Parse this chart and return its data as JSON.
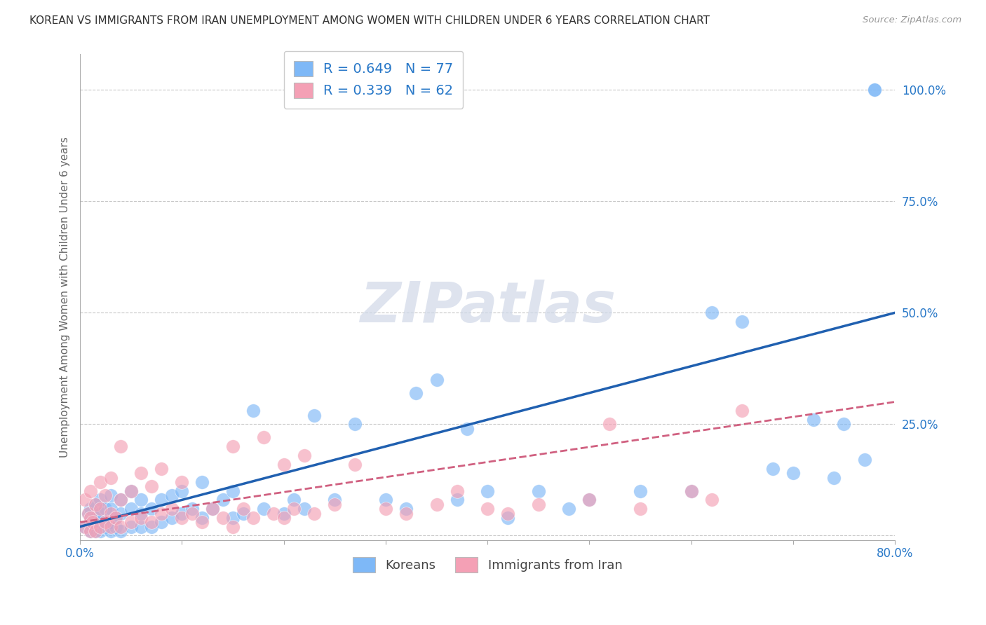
{
  "title": "KOREAN VS IMMIGRANTS FROM IRAN UNEMPLOYMENT AMONG WOMEN WITH CHILDREN UNDER 6 YEARS CORRELATION CHART",
  "source": "Source: ZipAtlas.com",
  "ylabel": "Unemployment Among Women with Children Under 6 years",
  "xlim": [
    0.0,
    0.8
  ],
  "ylim": [
    -0.01,
    1.08
  ],
  "xticks": [
    0.0,
    0.1,
    0.2,
    0.3,
    0.4,
    0.5,
    0.6,
    0.7,
    0.8
  ],
  "xticklabels": [
    "0.0%",
    "",
    "",
    "",
    "",
    "",
    "",
    "",
    "80.0%"
  ],
  "ytick_positions": [
    0.0,
    0.25,
    0.5,
    0.75,
    1.0
  ],
  "ytick_labels": [
    "",
    "25.0%",
    "50.0%",
    "75.0%",
    "100.0%"
  ],
  "korean_color": "#7eb8f7",
  "iran_color": "#f4a0b5",
  "korean_line_color": "#2060b0",
  "iran_line_color": "#d06080",
  "korean_R": 0.649,
  "korean_N": 77,
  "iran_R": 0.339,
  "iran_N": 62,
  "watermark": "ZIPatlas",
  "background_color": "#ffffff",
  "grid_color": "#c8c8c8",
  "title_color": "#333333",
  "axis_label_color": "#666666",
  "tick_color": "#2878c8",
  "korean_x": [
    0.005,
    0.008,
    0.01,
    0.01,
    0.01,
    0.012,
    0.015,
    0.015,
    0.015,
    0.02,
    0.02,
    0.02,
    0.02,
    0.025,
    0.025,
    0.03,
    0.03,
    0.03,
    0.03,
    0.035,
    0.035,
    0.04,
    0.04,
    0.04,
    0.05,
    0.05,
    0.05,
    0.06,
    0.06,
    0.06,
    0.07,
    0.07,
    0.08,
    0.08,
    0.09,
    0.09,
    0.1,
    0.1,
    0.11,
    0.12,
    0.12,
    0.13,
    0.14,
    0.15,
    0.15,
    0.16,
    0.17,
    0.18,
    0.2,
    0.21,
    0.22,
    0.23,
    0.25,
    0.27,
    0.3,
    0.32,
    0.33,
    0.35,
    0.37,
    0.38,
    0.4,
    0.42,
    0.45,
    0.48,
    0.5,
    0.55,
    0.6,
    0.62,
    0.65,
    0.68,
    0.7,
    0.72,
    0.74,
    0.75,
    0.77,
    0.78,
    0.78
  ],
  "korean_y": [
    0.02,
    0.05,
    0.01,
    0.03,
    0.06,
    0.02,
    0.01,
    0.04,
    0.07,
    0.01,
    0.03,
    0.05,
    0.08,
    0.02,
    0.06,
    0.01,
    0.03,
    0.06,
    0.09,
    0.02,
    0.04,
    0.01,
    0.05,
    0.08,
    0.02,
    0.06,
    0.1,
    0.02,
    0.05,
    0.08,
    0.02,
    0.06,
    0.03,
    0.08,
    0.04,
    0.09,
    0.05,
    0.1,
    0.06,
    0.04,
    0.12,
    0.06,
    0.08,
    0.04,
    0.1,
    0.05,
    0.28,
    0.06,
    0.05,
    0.08,
    0.06,
    0.27,
    0.08,
    0.25,
    0.08,
    0.06,
    0.32,
    0.35,
    0.08,
    0.24,
    0.1,
    0.04,
    0.1,
    0.06,
    0.08,
    0.1,
    0.1,
    0.5,
    0.48,
    0.15,
    0.14,
    0.26,
    0.13,
    0.25,
    0.17,
    1.0,
    1.0
  ],
  "iran_x": [
    0.005,
    0.005,
    0.008,
    0.01,
    0.01,
    0.01,
    0.012,
    0.015,
    0.015,
    0.02,
    0.02,
    0.02,
    0.025,
    0.025,
    0.03,
    0.03,
    0.03,
    0.035,
    0.04,
    0.04,
    0.04,
    0.05,
    0.05,
    0.06,
    0.06,
    0.07,
    0.07,
    0.08,
    0.08,
    0.09,
    0.1,
    0.1,
    0.11,
    0.12,
    0.13,
    0.14,
    0.15,
    0.15,
    0.16,
    0.17,
    0.18,
    0.19,
    0.2,
    0.2,
    0.21,
    0.22,
    0.23,
    0.25,
    0.27,
    0.3,
    0.32,
    0.35,
    0.37,
    0.4,
    0.42,
    0.45,
    0.5,
    0.52,
    0.55,
    0.6,
    0.62,
    0.65
  ],
  "iran_y": [
    0.02,
    0.08,
    0.05,
    0.01,
    0.04,
    0.1,
    0.03,
    0.01,
    0.07,
    0.02,
    0.06,
    0.12,
    0.03,
    0.09,
    0.02,
    0.05,
    0.13,
    0.04,
    0.02,
    0.08,
    0.2,
    0.03,
    0.1,
    0.04,
    0.14,
    0.03,
    0.11,
    0.05,
    0.15,
    0.06,
    0.04,
    0.12,
    0.05,
    0.03,
    0.06,
    0.04,
    0.02,
    0.2,
    0.06,
    0.04,
    0.22,
    0.05,
    0.04,
    0.16,
    0.06,
    0.18,
    0.05,
    0.07,
    0.16,
    0.06,
    0.05,
    0.07,
    0.1,
    0.06,
    0.05,
    0.07,
    0.08,
    0.25,
    0.06,
    0.1,
    0.08,
    0.28
  ]
}
